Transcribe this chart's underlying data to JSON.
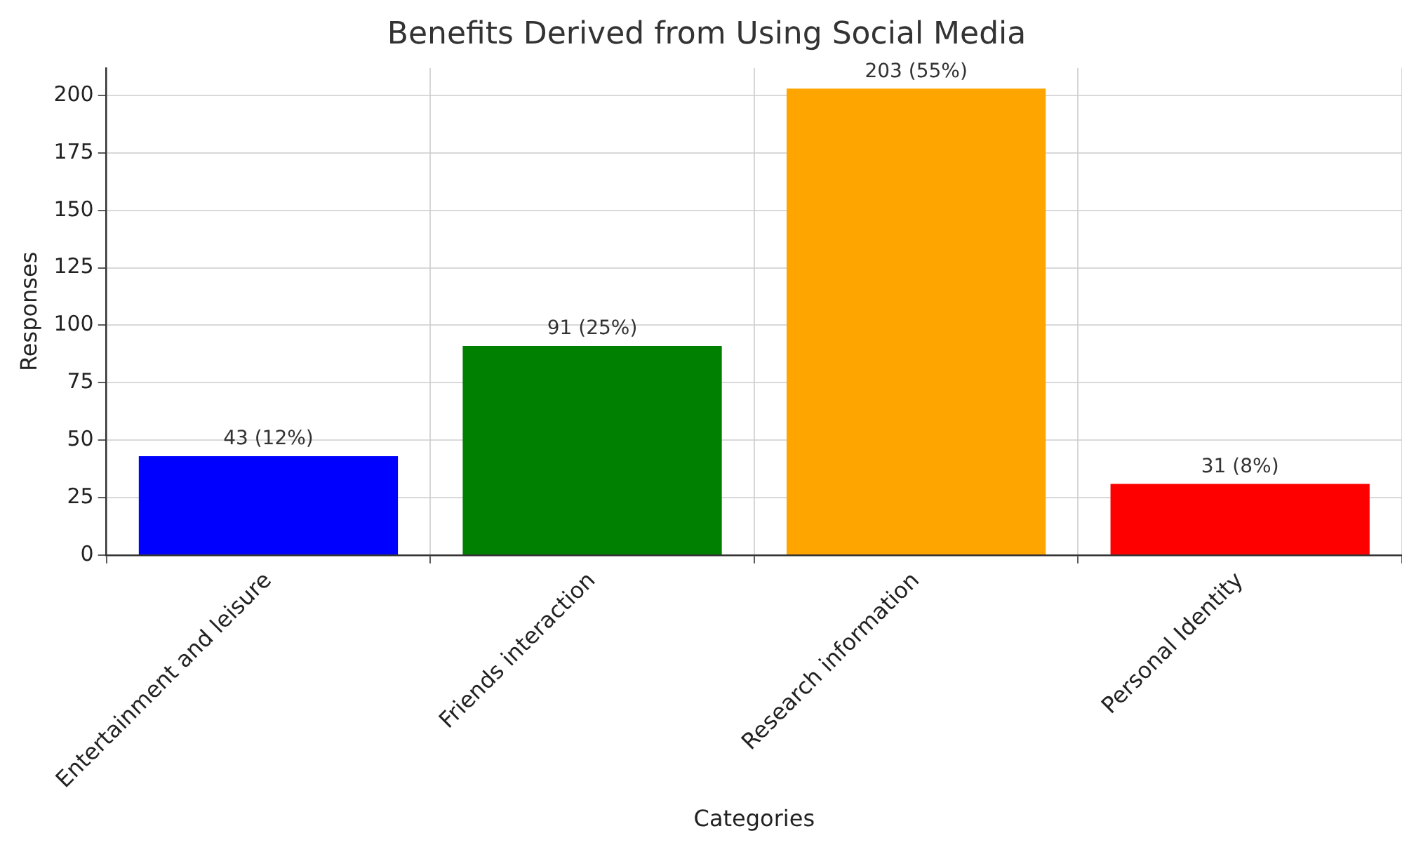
{
  "chart_data": {
    "type": "bar",
    "title": "Benefits Derived from Using Social Media",
    "xlabel": "Categories",
    "ylabel": "Responses",
    "categories": [
      "Entertainment and leisure",
      "Friends interaction",
      "Research information",
      "Personal Identity"
    ],
    "values": [
      43,
      91,
      203,
      31
    ],
    "colors": [
      "#0000ff",
      "#008000",
      "#ffa500",
      "#ff0000"
    ],
    "value_labels": [
      "43 (12%)",
      "91 (25%)",
      "203 (55%)",
      "31 (8%)"
    ],
    "ylim": [
      0,
      212
    ],
    "yticks": [
      0,
      25,
      50,
      75,
      100,
      125,
      150,
      175,
      200
    ],
    "grid": true
  }
}
